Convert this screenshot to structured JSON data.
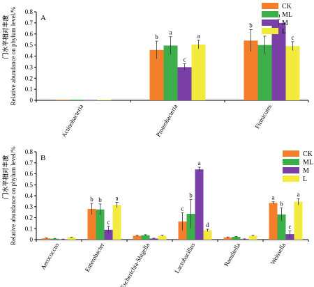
{
  "chart_data": [
    {
      "type": "bar",
      "panel_label": "A",
      "ylabel": "Relative abundance on phylum level/%",
      "ylabel_cn": "门水平相对丰度",
      "ylim": [
        0,
        0.8
      ],
      "yticks": [
        "0",
        "0.1",
        "0.2",
        "0.3",
        "0.4",
        "0.5",
        "0.6",
        "0.7",
        "0.8"
      ],
      "categories": [
        "Actinobacteria",
        "Proteobacteria",
        "Firmicutes"
      ],
      "legend_position": "top-right",
      "series": [
        {
          "name": "CK",
          "color": "#F47F2A",
          "values": [
            0.005,
            0.455,
            0.54
          ],
          "errors": [
            0.0,
            0.08,
            0.1
          ],
          "labels": [
            "",
            "b",
            "b"
          ]
        },
        {
          "name": "ML",
          "color": "#3CAF4A",
          "values": [
            0.005,
            0.495,
            0.5
          ],
          "errors": [
            0.0,
            0.08,
            0.08
          ],
          "labels": [
            "",
            "a",
            "c"
          ]
        },
        {
          "name": "M",
          "color": "#7B3FA8",
          "values": [
            0.002,
            0.3,
            0.7
          ],
          "errors": [
            0.0,
            0.03,
            0.03
          ],
          "labels": [
            "",
            "c",
            "a"
          ]
        },
        {
          "name": "L",
          "color": "#F2EA3C",
          "values": [
            0.004,
            0.505,
            0.49
          ],
          "errors": [
            0.0,
            0.04,
            0.04
          ],
          "labels": [
            "",
            "a",
            "c"
          ]
        }
      ]
    },
    {
      "type": "bar",
      "panel_label": "B",
      "ylabel": "Relative abundance on phylum level/%",
      "ylabel_cn": "门水平相对丰度",
      "ylim": [
        0,
        0.8
      ],
      "yticks": [
        "0",
        "0.1",
        "0.2",
        "0.3",
        "0.4",
        "0.5",
        "0.6",
        "0.7",
        "0.8"
      ],
      "categories": [
        "Aerococcus",
        "Enterobacter",
        "Escherichia-Shigella",
        "Lactobacillus",
        "Raoultella",
        "Weissella"
      ],
      "legend_position": "top-right",
      "series": [
        {
          "name": "CK",
          "color": "#F47F2A",
          "values": [
            0.012,
            0.28,
            0.035,
            0.165,
            0.02,
            0.335
          ],
          "errors": [
            0.003,
            0.05,
            0.005,
            0.08,
            0.004,
            0.01
          ],
          "labels": [
            "",
            "b",
            "",
            "c",
            "",
            "a"
          ]
        },
        {
          "name": "ML",
          "color": "#3CAF4A",
          "values": [
            0.008,
            0.275,
            0.04,
            0.235,
            0.025,
            0.23
          ],
          "errors": [
            0.003,
            0.05,
            0.005,
            0.13,
            0.004,
            0.06
          ],
          "labels": [
            "",
            "b",
            "",
            "b",
            "",
            "b"
          ]
        },
        {
          "name": "M",
          "color": "#7B3FA8",
          "values": [
            0.003,
            0.09,
            0.01,
            0.64,
            0.005,
            0.05
          ],
          "errors": [
            0.002,
            0.03,
            0.003,
            0.02,
            0.002,
            0.03
          ],
          "labels": [
            "",
            "c",
            "",
            "a",
            "",
            "c"
          ]
        },
        {
          "name": "L",
          "color": "#F2EA3C",
          "values": [
            0.02,
            0.315,
            0.035,
            0.085,
            0.035,
            0.345
          ],
          "errors": [
            0.003,
            0.025,
            0.004,
            0.01,
            0.004,
            0.03
          ],
          "labels": [
            "",
            "a",
            "",
            "d",
            "",
            "a"
          ]
        }
      ]
    }
  ]
}
